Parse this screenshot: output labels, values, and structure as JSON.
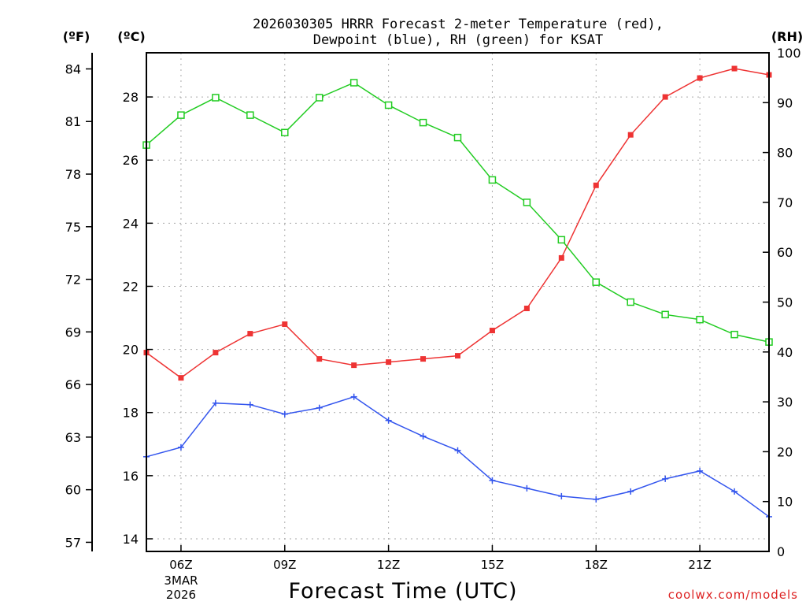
{
  "chart_data": {
    "type": "line",
    "title_line1": "2026030305 HRRR Forecast 2-meter Temperature (red),",
    "title_line2": "Dewpoint (blue), RH (green) for KSAT",
    "xlabel": "Forecast Time (UTC)",
    "date_label_month": "3MAR",
    "date_label_year": "2026",
    "left_outer_unit": "(ºF)",
    "left_inner_unit": "(ºC)",
    "right_unit": "(RH)",
    "credit": "coolwx.com/models",
    "x_hours": [
      5,
      6,
      7,
      8,
      9,
      10,
      11,
      12,
      13,
      14,
      15,
      16,
      17,
      18,
      19,
      20,
      21,
      22,
      23
    ],
    "xlim": [
      5,
      23
    ],
    "x_ticks": [
      {
        "hour": 6,
        "label": "06Z"
      },
      {
        "hour": 9,
        "label": "09Z"
      },
      {
        "hour": 12,
        "label": "12Z"
      },
      {
        "hour": 15,
        "label": "15Z"
      },
      {
        "hour": 18,
        "label": "18Z"
      },
      {
        "hour": 21,
        "label": "21Z"
      }
    ],
    "celsius_axis": {
      "ylim": [
        13.6,
        29.4
      ],
      "ticks": [
        14,
        16,
        18,
        20,
        22,
        24,
        26,
        28
      ]
    },
    "fahrenheit_ticks": [
      57,
      60,
      63,
      66,
      69,
      72,
      75,
      78,
      81,
      84
    ],
    "rh_axis": {
      "ylim": [
        0,
        100
      ],
      "ticks": [
        0,
        10,
        20,
        30,
        40,
        50,
        60,
        70,
        80,
        90,
        100
      ]
    },
    "series": [
      {
        "name": "2-meter Temperature",
        "axis": "celsius",
        "color": "#ee3333",
        "marker": "filled-square",
        "values": [
          19.9,
          19.1,
          19.9,
          20.5,
          20.8,
          19.7,
          19.5,
          19.6,
          19.7,
          19.8,
          20.6,
          21.3,
          22.9,
          25.2,
          26.8,
          28.0,
          28.6,
          28.9,
          28.7
        ]
      },
      {
        "name": "Dewpoint",
        "axis": "celsius",
        "color": "#3355ee",
        "marker": "plus",
        "values": [
          16.6,
          16.9,
          18.3,
          18.25,
          17.95,
          18.15,
          18.5,
          17.75,
          17.25,
          16.8,
          15.85,
          15.6,
          15.35,
          15.25,
          15.5,
          15.9,
          16.15,
          15.5,
          14.7
        ]
      },
      {
        "name": "Relative Humidity",
        "axis": "rh",
        "color": "#22cc22",
        "marker": "open-square",
        "values": [
          81.5,
          87.5,
          91.0,
          87.5,
          84.0,
          91.0,
          94.0,
          89.5,
          86.0,
          83.0,
          74.5,
          70.0,
          62.5,
          54.0,
          50.0,
          47.5,
          46.5,
          43.5,
          42.0
        ]
      }
    ]
  }
}
